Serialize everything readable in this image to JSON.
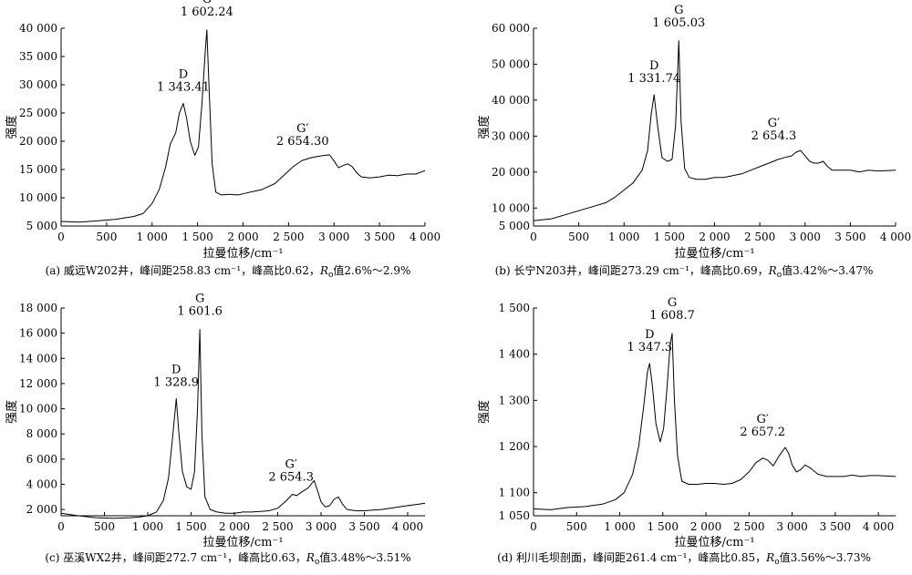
{
  "chart_data": [
    {
      "type": "line",
      "panel": "a",
      "xlabel": "拉曼位移/cm⁻¹",
      "ylabel": "强度",
      "xlim": [
        0,
        4000
      ],
      "ylim": [
        5000,
        40000
      ],
      "x_ticks": [
        0,
        500,
        1000,
        1500,
        2000,
        2500,
        3000,
        3500,
        4000
      ],
      "x_tick_labels": [
        "0",
        "500",
        "1 000",
        "1 500",
        "2 000",
        "2 500",
        "3 000",
        "3 500",
        "4 000"
      ],
      "y_ticks": [
        5000,
        10000,
        15000,
        20000,
        25000,
        30000,
        35000,
        40000
      ],
      "y_tick_labels": [
        "5 000",
        "10 000",
        "15 000",
        "20 000",
        "25 000",
        "30 000",
        "35 000",
        "40 000"
      ],
      "caption": {
        "label": "(a) 威远W202井，峰间距258.83 cm⁻¹，峰高比0.62，",
        "r": "R",
        "sub": "o",
        "tail": "值2.6%～2.9%"
      },
      "annotations": [
        {
          "name": "D",
          "value": "1 343.41",
          "x": 1343.41,
          "y": 26700
        },
        {
          "name": "G",
          "value": "1 602.24",
          "x": 1602.24,
          "y": 39700
        },
        {
          "name": "G′",
          "value": "2 654.30",
          "x": 2654.3,
          "y": 17400
        }
      ],
      "series": [
        {
          "x": [
            0,
            200,
            400,
            600,
            800,
            900,
            1000,
            1080,
            1150,
            1200,
            1260,
            1300,
            1343,
            1380,
            1420,
            1470,
            1510,
            1550,
            1585,
            1602,
            1625,
            1660,
            1700,
            1760,
            1850,
            1950,
            2000,
            2080,
            2200,
            2350,
            2450,
            2550,
            2650,
            2750,
            2850,
            2950,
            3000,
            3050,
            3100,
            3150,
            3200,
            3250,
            3300,
            3400,
            3500,
            3600,
            3700,
            3800,
            3900,
            4000
          ],
          "y": [
            5800,
            5700,
            5900,
            6200,
            6700,
            7200,
            9000,
            11500,
            15500,
            19500,
            21500,
            25000,
            26700,
            24000,
            20000,
            17500,
            19000,
            27000,
            36000,
            39700,
            30000,
            16000,
            11000,
            10500,
            10600,
            10500,
            10700,
            11000,
            11400,
            12500,
            14000,
            15500,
            16600,
            17100,
            17400,
            17600,
            16500,
            15300,
            15700,
            16000,
            15500,
            14400,
            13700,
            13500,
            13700,
            14000,
            13900,
            14200,
            14200,
            14800
          ]
        }
      ]
    },
    {
      "type": "line",
      "panel": "b",
      "xlabel": "拉曼位移/cm⁻¹",
      "ylabel": "强度",
      "xlim": [
        0,
        4000
      ],
      "ylim": [
        5000,
        60000
      ],
      "x_ticks": [
        0,
        500,
        1000,
        1500,
        2000,
        2500,
        3000,
        3500,
        4000
      ],
      "x_tick_labels": [
        "0",
        "500",
        "1 000",
        "1 500",
        "2 000",
        "2 500",
        "3 000",
        "3 500",
        "4 000"
      ],
      "y_ticks": [
        5000,
        10000,
        20000,
        30000,
        40000,
        50000,
        60000
      ],
      "y_tick_labels": [
        "5 000",
        "10 000",
        "20 000",
        "30 000",
        "40 000",
        "50 000",
        "60 000"
      ],
      "caption": {
        "label": "(b) 长宁N203井，峰间距273.29 cm⁻¹，峰高比0.69，",
        "r": "R",
        "sub": "o",
        "tail": "值3.42%～3.47%"
      },
      "annotations": [
        {
          "name": "D",
          "value": "1 331.74",
          "x": 1331.74,
          "y": 41500
        },
        {
          "name": "G",
          "value": "1 605.03",
          "x": 1605.03,
          "y": 56500
        },
        {
          "name": "G′",
          "value": "2 654.3",
          "x": 2654.3,
          "y": 26000
        }
      ],
      "series": [
        {
          "x": [
            0,
            200,
            400,
            600,
            800,
            900,
            1000,
            1100,
            1200,
            1260,
            1300,
            1332,
            1370,
            1420,
            1480,
            1530,
            1570,
            1605,
            1630,
            1670,
            1720,
            1800,
            1900,
            2000,
            2100,
            2200,
            2300,
            2400,
            2500,
            2600,
            2700,
            2800,
            2850,
            2900,
            2950,
            3000,
            3050,
            3100,
            3150,
            3200,
            3250,
            3300,
            3400,
            3500,
            3600,
            3700,
            3800,
            3900,
            4000
          ],
          "y": [
            6500,
            7000,
            8500,
            10000,
            11500,
            13000,
            15000,
            17000,
            20500,
            26000,
            36000,
            41500,
            33000,
            24000,
            23000,
            23500,
            33000,
            56500,
            34000,
            21000,
            18500,
            18000,
            18000,
            18500,
            18500,
            19000,
            19500,
            20500,
            21500,
            22500,
            23500,
            24200,
            24500,
            25500,
            26000,
            24500,
            23000,
            22500,
            22500,
            23000,
            21500,
            20500,
            20500,
            20500,
            20000,
            20500,
            20300,
            20400,
            20500
          ]
        }
      ]
    },
    {
      "type": "line",
      "panel": "c",
      "xlabel": "拉曼位移/cm⁻¹",
      "ylabel": "强度",
      "xlim": [
        0,
        4200
      ],
      "ylim": [
        1500,
        18000
      ],
      "x_ticks": [
        0,
        500,
        1000,
        1500,
        2000,
        2500,
        3000,
        3500,
        4000
      ],
      "x_tick_labels": [
        "0",
        "500",
        "1 000",
        "1 500",
        "2 000",
        "2 500",
        "3 000",
        "3 500",
        "4 000"
      ],
      "y_ticks": [
        2000,
        4000,
        6000,
        8000,
        10000,
        12000,
        14000,
        16000,
        18000
      ],
      "y_tick_labels": [
        "2 000",
        "4 000",
        "6 000",
        "8 000",
        "10 000",
        "12 000",
        "14 000",
        "16 000",
        "18 000"
      ],
      "caption": {
        "label": "(c) 巫溪WX2井，峰间距272.7 cm⁻¹，峰高比0.63，",
        "r": "R",
        "sub": "o",
        "tail": "值3.48%～3.51%"
      },
      "annotations": [
        {
          "name": "D",
          "value": "1 328.9",
          "x": 1328.9,
          "y": 10800
        },
        {
          "name": "G",
          "value": "1 601.6",
          "x": 1601.6,
          "y": 16300
        },
        {
          "name": "G′",
          "value": "2 654.3",
          "x": 2654.3,
          "y": 3400
        }
      ],
      "series": [
        {
          "x": [
            0,
            200,
            400,
            600,
            800,
            900,
            1000,
            1100,
            1180,
            1240,
            1290,
            1329,
            1360,
            1400,
            1450,
            1500,
            1540,
            1575,
            1601,
            1625,
            1660,
            1720,
            1800,
            1900,
            2000,
            2100,
            2200,
            2300,
            2400,
            2500,
            2600,
            2670,
            2720,
            2780,
            2850,
            2920,
            2960,
            3000,
            3050,
            3100,
            3150,
            3200,
            3250,
            3300,
            3400,
            3500,
            3600,
            3700,
            3800,
            3900,
            4000,
            4100,
            4200
          ],
          "y": [
            1700,
            1500,
            1350,
            1300,
            1350,
            1400,
            1500,
            1800,
            2700,
            4500,
            8000,
            10800,
            8000,
            5000,
            3800,
            3600,
            5000,
            10000,
            16300,
            8000,
            3000,
            2000,
            1800,
            1700,
            1700,
            1800,
            1800,
            1850,
            1900,
            2100,
            2700,
            3200,
            3100,
            3400,
            3700,
            4300,
            3500,
            2600,
            2200,
            2300,
            2800,
            3000,
            2400,
            2000,
            1900,
            1900,
            1950,
            2000,
            2100,
            2200,
            2300,
            2400,
            2500
          ]
        }
      ]
    },
    {
      "type": "line",
      "panel": "d",
      "xlabel": "拉曼位移/cm⁻¹",
      "ylabel": "强度",
      "xlim": [
        0,
        4200
      ],
      "ylim": [
        1050,
        1500
      ],
      "x_ticks": [
        0,
        500,
        1000,
        1500,
        2000,
        2500,
        3000,
        3500,
        4000
      ],
      "x_tick_labels": [
        "0",
        "500",
        "1 000",
        "1 500",
        "2 000",
        "2 500",
        "3 000",
        "3 500",
        "4 000"
      ],
      "y_ticks": [
        1050,
        1100,
        1200,
        1300,
        1400,
        1500
      ],
      "y_tick_labels": [
        "1 050",
        "1 100",
        "1 200",
        "1 300",
        "1 400",
        "1 500"
      ],
      "caption": {
        "label": "(d) 利川毛坝剖面，峰间距261.4 cm⁻¹，峰高比0.85，",
        "r": "R",
        "sub": "o",
        "tail": "值3.56%～3.73%"
      },
      "annotations": [
        {
          "name": "D",
          "value": "1 347.3",
          "x": 1347.3,
          "y": 1380
        },
        {
          "name": "G",
          "value": "1 608.7",
          "x": 1608.7,
          "y": 1445
        },
        {
          "name": "G′",
          "value": "2 657.2",
          "x": 2657.2,
          "y": 1200
        }
      ],
      "series": [
        {
          "x": [
            0,
            200,
            400,
            600,
            800,
            950,
            1050,
            1150,
            1220,
            1280,
            1320,
            1347,
            1380,
            1420,
            1470,
            1510,
            1550,
            1585,
            1608,
            1635,
            1670,
            1720,
            1800,
            1900,
            2000,
            2100,
            2200,
            2300,
            2400,
            2500,
            2580,
            2660,
            2720,
            2780,
            2850,
            2920,
            2960,
            3000,
            3050,
            3100,
            3150,
            3200,
            3300,
            3400,
            3500,
            3600,
            3700,
            3800,
            3900,
            4000,
            4100,
            4200
          ],
          "y": [
            1065,
            1063,
            1068,
            1070,
            1075,
            1085,
            1100,
            1140,
            1200,
            1290,
            1360,
            1380,
            1330,
            1250,
            1210,
            1240,
            1330,
            1420,
            1445,
            1300,
            1180,
            1125,
            1118,
            1118,
            1120,
            1120,
            1118,
            1120,
            1128,
            1145,
            1165,
            1175,
            1170,
            1158,
            1180,
            1198,
            1185,
            1160,
            1145,
            1150,
            1160,
            1155,
            1140,
            1135,
            1135,
            1135,
            1138,
            1135,
            1137,
            1137,
            1136,
            1135
          ]
        }
      ]
    }
  ]
}
